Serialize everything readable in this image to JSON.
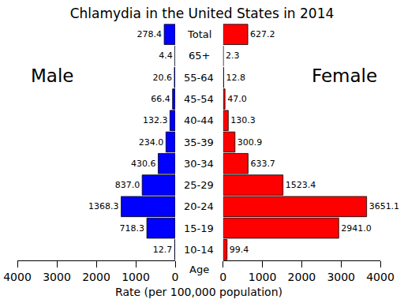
{
  "chart_data": {
    "type": "bar",
    "orientation": "horizontal",
    "title": "Chlamydia in the United States in 2014",
    "xlabel": "Rate (per 100,000 population)",
    "ylabel": "Age",
    "categories": [
      "10-14",
      "15-19",
      "20-24",
      "25-29",
      "30-34",
      "35-39",
      "40-44",
      "45-54",
      "55-64",
      "65+",
      "Total"
    ],
    "xlim": [
      0,
      4000
    ],
    "xticks": [
      0,
      1000,
      2000,
      3000,
      4000
    ],
    "data_labels": true,
    "series": [
      {
        "name": "Male",
        "color": "#0000ff",
        "values": [
          12.7,
          718.3,
          1368.3,
          837.0,
          430.6,
          234.0,
          132.3,
          66.4,
          20.6,
          4.4,
          278.4
        ],
        "value_labels": [
          "12.7",
          "718.3",
          "1368.3",
          "837.0",
          "430.6",
          "234.0",
          "132.3",
          "66.4",
          "20.6",
          "4.4",
          "278.4"
        ]
      },
      {
        "name": "Female",
        "color": "#ff0000",
        "values": [
          99.4,
          2941.0,
          3651.1,
          1523.4,
          633.7,
          300.9,
          130.3,
          47.0,
          12.8,
          2.3,
          627.2
        ],
        "value_labels": [
          "99.4",
          "2941.0",
          "3651.1",
          "1523.4",
          "633.7",
          "300.9",
          "130.3",
          "47.0",
          "12.8",
          "2.3",
          "627.2"
        ]
      }
    ]
  }
}
